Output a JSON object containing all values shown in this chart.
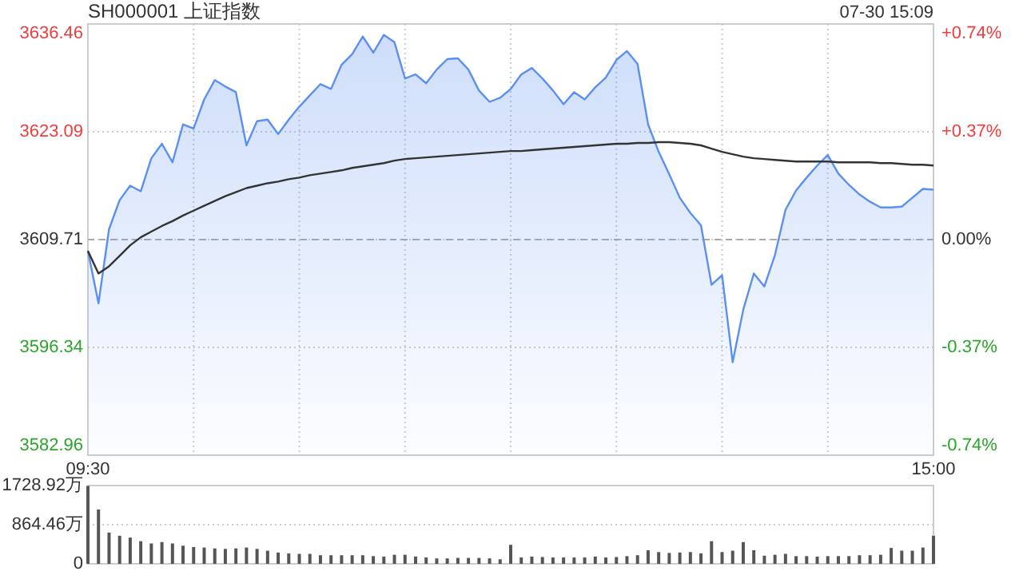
{
  "chart_data": [
    {
      "type": "line",
      "title": "SH000001 上证指数",
      "annotations": [
        "07-30 15:09"
      ],
      "categories": [
        "09:30",
        null,
        null,
        null,
        null,
        null,
        null,
        null,
        null,
        null,
        null,
        null,
        null,
        null,
        null,
        null,
        null,
        null,
        null,
        null,
        null,
        null,
        null,
        null,
        null,
        null,
        null,
        null,
        null,
        null,
        null,
        null,
        null,
        null,
        null,
        null,
        null,
        null,
        null,
        null,
        null,
        null,
        null,
        null,
        null,
        null,
        null,
        null,
        null,
        null,
        null,
        null,
        null,
        null,
        null,
        null,
        null,
        null,
        null,
        null,
        null,
        null,
        null,
        null,
        null,
        null,
        null,
        null,
        null,
        null,
        null,
        null,
        null,
        null,
        null,
        null,
        null,
        null,
        null,
        null,
        "15:00"
      ],
      "series": [
        {
          "type": "area",
          "color": "#5b8ff0",
          "values": [
            3608.3,
            3601.8,
            3611.0,
            3614.6,
            3616.4,
            3615.7,
            3619.8,
            3621.6,
            3619.3,
            3624.0,
            3623.5,
            3627.1,
            3629.5,
            3628.7,
            3628.0,
            3621.4,
            3624.4,
            3624.6,
            3622.8,
            3624.6,
            3626.2,
            3627.6,
            3629.0,
            3628.4,
            3631.4,
            3632.7,
            3634.9,
            3632.9,
            3635.1,
            3634.2,
            3629.7,
            3630.2,
            3629.1,
            3630.8,
            3632.1,
            3632.2,
            3630.8,
            3628.2,
            3626.8,
            3627.3,
            3628.4,
            3630.2,
            3631.0,
            3629.7,
            3628.2,
            3626.5,
            3628.0,
            3627.1,
            3628.6,
            3629.8,
            3632.0,
            3633.1,
            3631.5,
            3624.0,
            3620.6,
            3617.8,
            3614.9,
            3613.0,
            3611.5,
            3604.1,
            3605.3,
            3594.5,
            3601.0,
            3605.5,
            3603.9,
            3607.8,
            3613.4,
            3615.8,
            3617.4,
            3618.9,
            3620.2,
            3617.9,
            3616.5,
            3615.3,
            3614.4,
            3613.7,
            3613.7,
            3613.8,
            3614.9,
            3616.0,
            3615.9
          ]
        },
        {
          "color": "#333333",
          "values": [
            3608.3,
            3605.5,
            3606.4,
            3607.7,
            3609.0,
            3610.0,
            3610.7,
            3611.4,
            3612.0,
            3612.7,
            3613.3,
            3613.9,
            3614.5,
            3615.1,
            3615.6,
            3616.1,
            3616.4,
            3616.7,
            3616.9,
            3617.2,
            3617.4,
            3617.7,
            3617.9,
            3618.1,
            3618.3,
            3618.6,
            3618.8,
            3619.0,
            3619.2,
            3619.5,
            3619.7,
            3619.8,
            3619.9,
            3620.0,
            3620.1,
            3620.2,
            3620.3,
            3620.4,
            3620.5,
            3620.6,
            3620.7,
            3620.7,
            3620.8,
            3620.9,
            3621.0,
            3621.1,
            3621.2,
            3621.3,
            3621.4,
            3621.5,
            3621.6,
            3621.6,
            3621.7,
            3621.7,
            3621.8,
            3621.8,
            3621.7,
            3621.6,
            3621.4,
            3621.0,
            3620.6,
            3620.3,
            3620.0,
            3619.8,
            3619.7,
            3619.6,
            3619.5,
            3619.4,
            3619.4,
            3619.4,
            3619.4,
            3619.3,
            3619.3,
            3619.3,
            3619.3,
            3619.2,
            3619.2,
            3619.1,
            3619.0,
            3619.0,
            3618.9
          ]
        }
      ],
      "ylim": [
        3582.96,
        3636.46
      ],
      "yticks": [
        3582.96,
        3596.34,
        3609.71,
        3623.09,
        3636.46
      ],
      "y2lim": [
        -0.74,
        0.74
      ],
      "y2ticks": [
        {
          "value": -0.74,
          "label": "-0.74%"
        },
        {
          "value": -0.37,
          "label": "-0.37%"
        },
        {
          "value": 0,
          "label": "0.00%"
        },
        {
          "value": 0.37,
          "label": "+0.37%"
        },
        {
          "value": 0.74,
          "label": "+0.74%"
        }
      ],
      "ref_lines": [
        {
          "axis": "y",
          "value": 3609.71,
          "line_style": "dashed",
          "color": "#aaaaaa"
        }
      ],
      "grid": true
    },
    {
      "type": "bar",
      "color": "#555555",
      "tick_labels": "y",
      "grid": "y",
      "categories": [
        null,
        null,
        null,
        null,
        null,
        null,
        null,
        null,
        null,
        null,
        null,
        null,
        null,
        null,
        null,
        null,
        null,
        null,
        null,
        null,
        null,
        null,
        null,
        null,
        null,
        null,
        null,
        null,
        null,
        null,
        null,
        null,
        null,
        null,
        null,
        null,
        null,
        null,
        null,
        null,
        null,
        null,
        null,
        null,
        null,
        null,
        null,
        null,
        null,
        null,
        null,
        null,
        null,
        null,
        null,
        null,
        null,
        null,
        null,
        null,
        null,
        null,
        null,
        null,
        null,
        null,
        null,
        null,
        null,
        null,
        null,
        null,
        null,
        null,
        null,
        null,
        null,
        null,
        null,
        null,
        null
      ],
      "ylim": [
        0,
        1728.92
      ],
      "yticks": [
        0,
        {
          "value": 864.46,
          "label": "864.46万"
        },
        {
          "value": 1728.92,
          "label": "1728.92万"
        }
      ],
      "values": [
        1720,
        1200,
        690,
        620,
        580,
        500,
        450,
        480,
        450,
        400,
        370,
        360,
        340,
        330,
        340,
        360,
        330,
        290,
        250,
        230,
        220,
        220,
        190,
        190,
        190,
        190,
        190,
        170,
        160,
        200,
        200,
        160,
        140,
        120,
        120,
        130,
        130,
        130,
        120,
        100,
        420,
        140,
        160,
        150,
        140,
        140,
        140,
        140,
        160,
        140,
        150,
        170,
        190,
        300,
        260,
        240,
        250,
        260,
        230,
        500,
        260,
        290,
        480,
        300,
        180,
        200,
        220,
        170,
        170,
        160,
        170,
        170,
        170,
        190,
        190,
        200,
        350,
        290,
        290,
        360,
        620
      ]
    }
  ]
}
